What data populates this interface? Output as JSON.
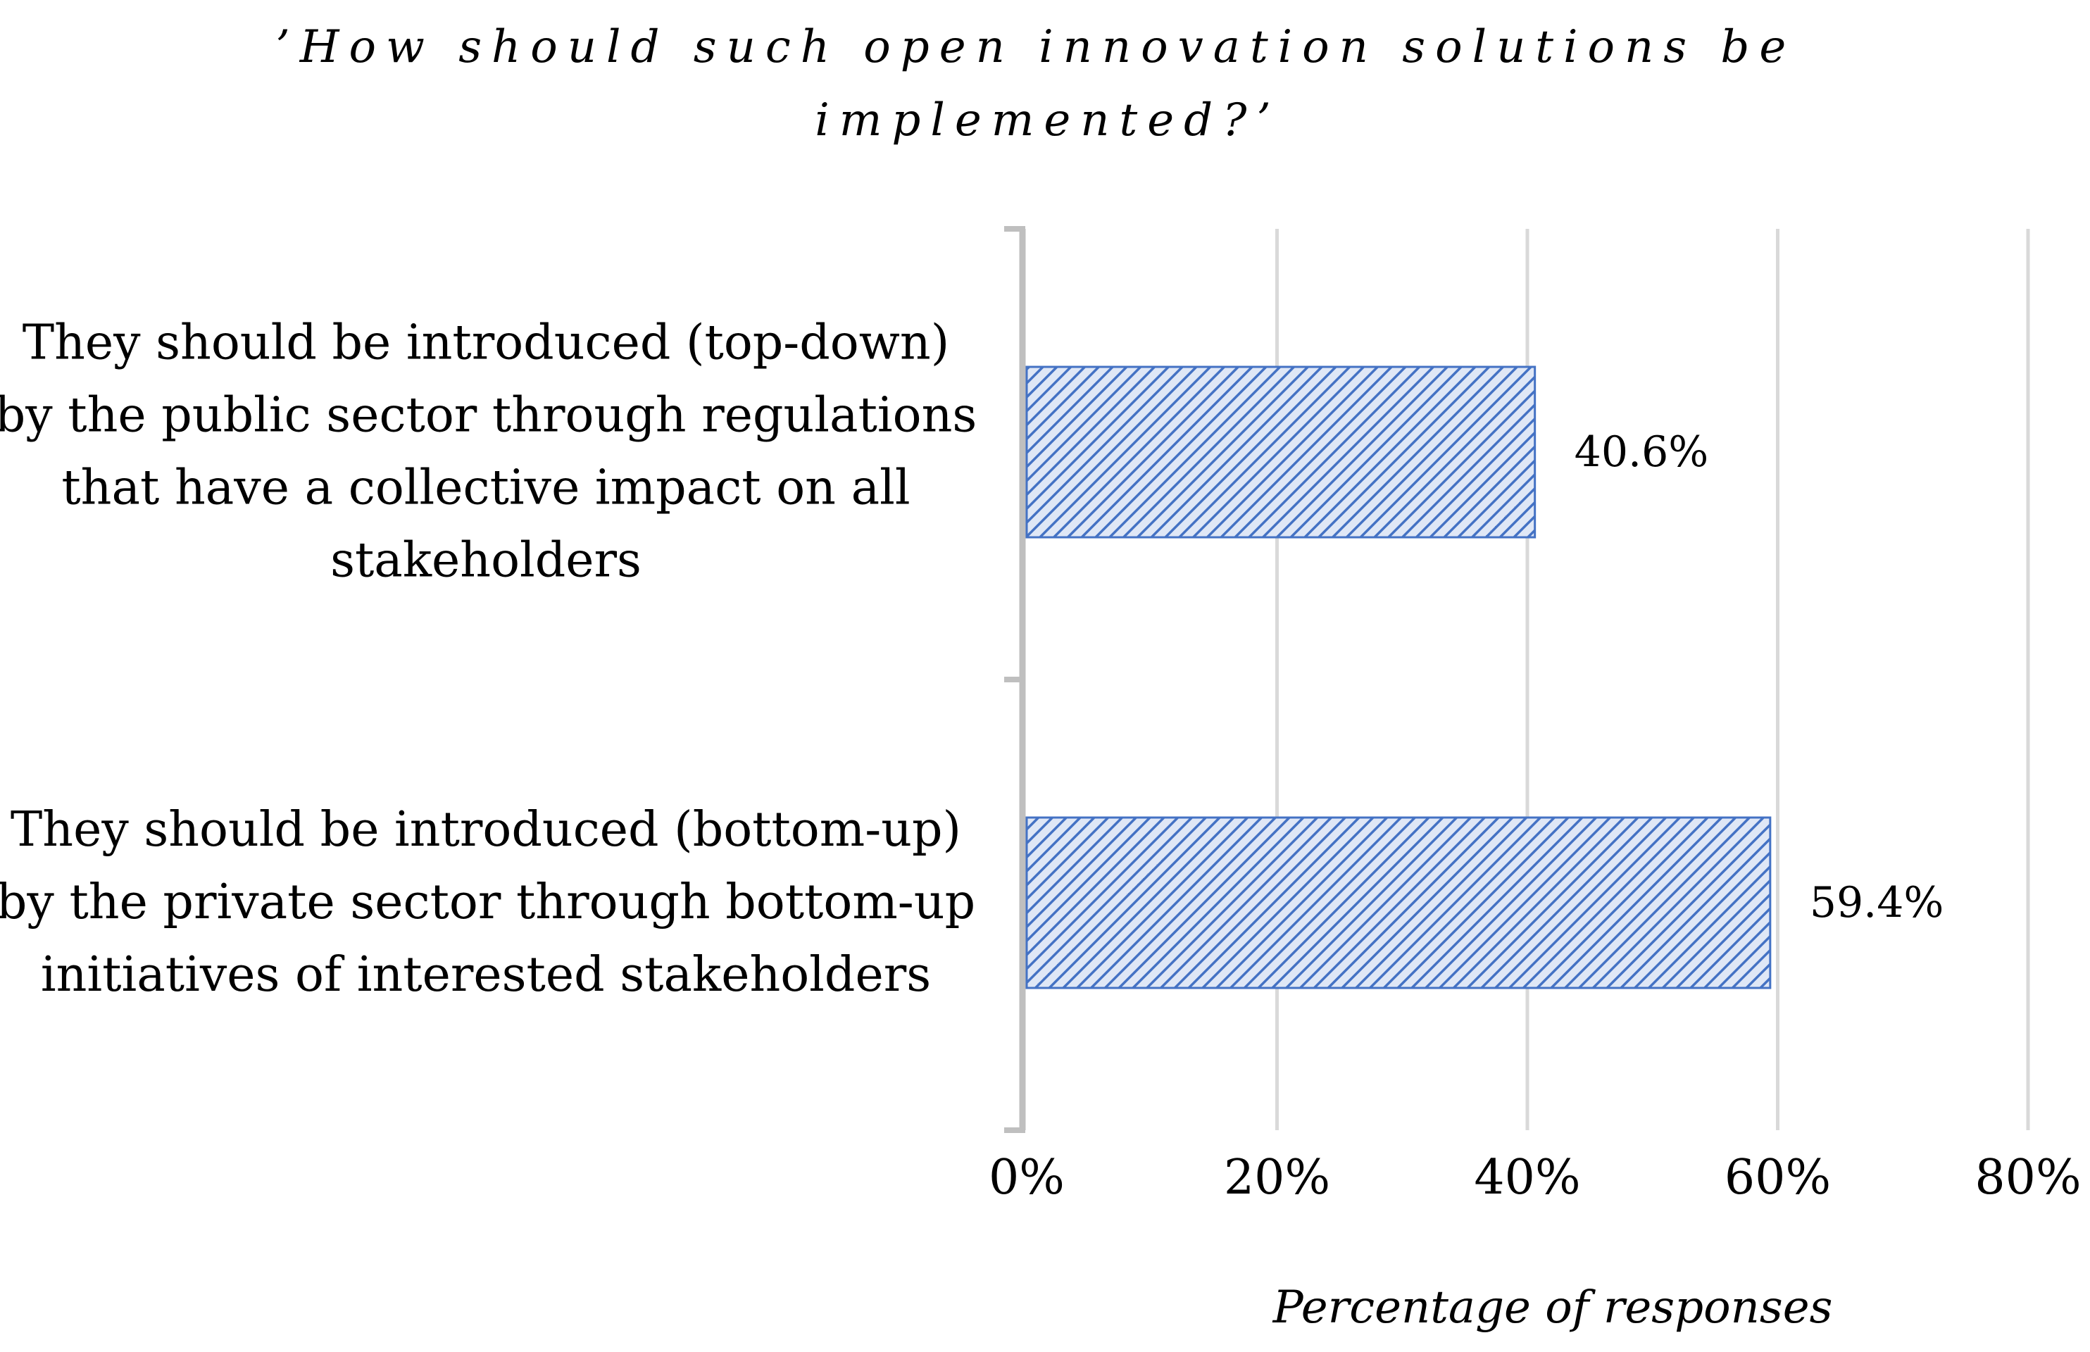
{
  "chart_data": {
    "type": "bar",
    "orientation": "horizontal",
    "title": "’How should such open innovation solutions be implemented?’",
    "title_lines": [
      "’How should such open innovation solutions be",
      "implemented?’"
    ],
    "categories": [
      "They should be introduced (top-down) by the public sector through regulations that have a collective impact on all stakeholders",
      "They should be introduced (bottom-up) by the private sector through bottom-up initiatives of interested stakeholders"
    ],
    "category_lines": [
      [
        "They should be introduced (top-down)",
        "by the public sector through regulations",
        "that have a collective impact on all",
        "stakeholders"
      ],
      [
        "They should be introduced (bottom-up)",
        "by the private sector through bottom-up",
        "initiatives of interested stakeholders"
      ]
    ],
    "values": [
      40.6,
      59.4
    ],
    "value_labels": [
      "40.6%",
      "59.4%"
    ],
    "xlabel": "Percentage of responses",
    "ylabel": "",
    "xlim": [
      0,
      80
    ],
    "x_ticks": [
      0,
      20,
      40,
      60,
      80
    ],
    "x_tick_labels": [
      "0%",
      "20%",
      "40%",
      "60%",
      "80%"
    ],
    "grid": "vertical",
    "legend": "none",
    "colors": {
      "bar_fill": "#4472c4",
      "bar_hatch_bg": "#dfe7f6",
      "grid": "#d9d9d9",
      "axis": "#bfbfbf",
      "text": "#000000"
    }
  }
}
